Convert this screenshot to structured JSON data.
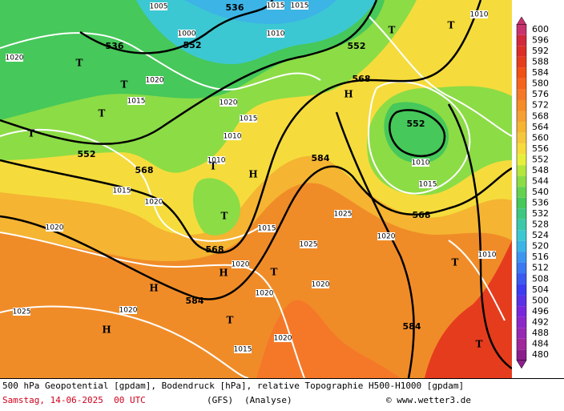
{
  "map": {
    "geopotential_labels": [
      "536",
      "536",
      "552",
      "552",
      "568",
      "552",
      "568",
      "584",
      "552",
      "568",
      "568",
      "584",
      "584"
    ],
    "pressure_labels": [
      "1005",
      "1015",
      "1015",
      "1010",
      "1020",
      "1000",
      "1010",
      "1015",
      "1020",
      "1010",
      "1020",
      "1015",
      "1010",
      "1015",
      "1020",
      "1020",
      "1015",
      "1025",
      "1020",
      "1025",
      "1020",
      "1020",
      "1025",
      "1020",
      "1020",
      "1015",
      "1020",
      "1010",
      "1015",
      "1010"
    ],
    "markers": [
      "T",
      "T",
      "T",
      "T",
      "T",
      "T",
      "T",
      "T",
      "H",
      "H",
      "H",
      "H",
      "H",
      "T",
      "T",
      "T",
      "T"
    ]
  },
  "colorbar": {
    "levels": [
      600,
      596,
      592,
      588,
      584,
      580,
      576,
      572,
      568,
      564,
      560,
      556,
      552,
      548,
      544,
      540,
      536,
      532,
      528,
      524,
      520,
      516,
      512,
      508,
      504,
      500,
      496,
      492,
      488,
      484,
      480
    ],
    "colors": [
      "#c8326e",
      "#d2283c",
      "#dc2d28",
      "#e63c1e",
      "#f05014",
      "#f5641e",
      "#f57828",
      "#f58c28",
      "#f5a032",
      "#f5b432",
      "#f5c83c",
      "#f5dc3c",
      "#e6f03c",
      "#b4e63c",
      "#8cdc46",
      "#64d250",
      "#46c85a",
      "#3cc882",
      "#3cc8aa",
      "#3cc8d2",
      "#3cb4e6",
      "#3c96f0",
      "#3c78f0",
      "#3c5af0",
      "#3c3cf0",
      "#5a32e6",
      "#7828dc",
      "#8c28c8",
      "#9628b4",
      "#a0289b",
      "#8c1e8c"
    ]
  },
  "footer": {
    "description": "500 hPa Geopotential [gpdam], Bodendruck [hPa], relative Topographie H500-H1000 [gpdam]",
    "date": "Samstag, 14-06-2025  00 UTC",
    "model": "(GFS)",
    "run": "(Analyse)",
    "credit": "© www.wetter3.de"
  }
}
